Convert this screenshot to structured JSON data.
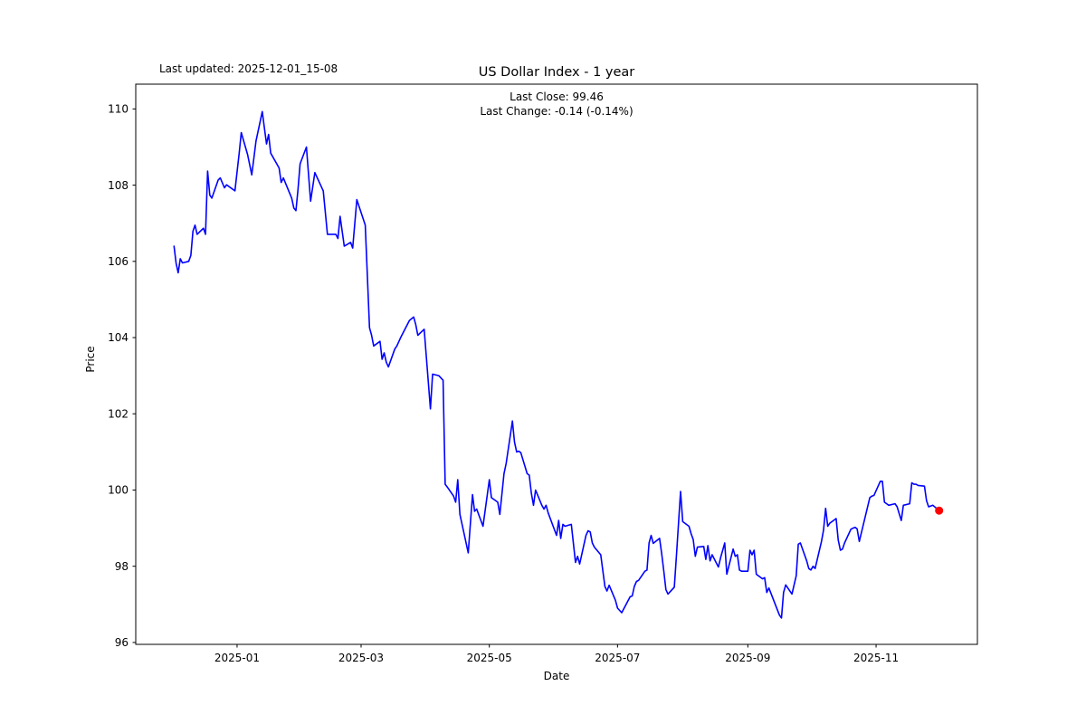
{
  "annotations": {
    "last_updated": "Last updated: 2025-12-01_15-08"
  },
  "chart_data": {
    "type": "line",
    "title": "US Dollar Index - 1 year",
    "subtitle_line1": "Last Close: 99.46",
    "subtitle_line2": "Last Change: -0.14 (-0.14%)",
    "xlabel": "Date",
    "ylabel": "Price",
    "x_tick_labels": [
      "2025-01",
      "2025-03",
      "2025-05",
      "2025-07",
      "2025-09",
      "2025-11"
    ],
    "y_ticks": [
      96,
      98,
      100,
      102,
      104,
      106,
      108,
      110
    ],
    "ylim": [
      95.95,
      110.65
    ],
    "x_range": [
      "2024-12-02",
      "2025-12-01"
    ],
    "grid": false,
    "legend": "none",
    "line_color": "#0000ff",
    "last_point_color": "#ff0000",
    "last_close": 99.46,
    "last_change_abs": -0.14,
    "last_change_pct": "-0.14%",
    "series": [
      {
        "name": "US Dollar Index",
        "points": [
          [
            "2024-12-02",
            106.4
          ],
          [
            "2024-12-03",
            105.95
          ],
          [
            "2024-12-04",
            105.7
          ],
          [
            "2024-12-05",
            106.07
          ],
          [
            "2024-12-06",
            105.96
          ],
          [
            "2024-12-09",
            106.0
          ],
          [
            "2024-12-10",
            106.16
          ],
          [
            "2024-12-11",
            106.79
          ],
          [
            "2024-12-12",
            106.95
          ],
          [
            "2024-12-13",
            106.71
          ],
          [
            "2024-12-16",
            106.87
          ],
          [
            "2024-12-17",
            106.71
          ],
          [
            "2024-12-18",
            108.37
          ],
          [
            "2024-12-19",
            107.74
          ],
          [
            "2024-12-20",
            107.66
          ],
          [
            "2024-12-23",
            108.13
          ],
          [
            "2024-12-24",
            108.19
          ],
          [
            "2024-12-26",
            107.93
          ],
          [
            "2024-12-27",
            108.01
          ],
          [
            "2024-12-30",
            107.89
          ],
          [
            "2024-12-31",
            107.85
          ],
          [
            "2025-01-02",
            108.84
          ],
          [
            "2025-01-03",
            109.38
          ],
          [
            "2025-01-06",
            108.8
          ],
          [
            "2025-01-08",
            108.27
          ],
          [
            "2025-01-10",
            109.16
          ],
          [
            "2025-01-13",
            109.93
          ],
          [
            "2025-01-14",
            109.51
          ],
          [
            "2025-01-15",
            109.08
          ],
          [
            "2025-01-16",
            109.33
          ],
          [
            "2025-01-17",
            108.84
          ],
          [
            "2025-01-21",
            108.45
          ],
          [
            "2025-01-22",
            108.07
          ],
          [
            "2025-01-23",
            108.19
          ],
          [
            "2025-01-27",
            107.66
          ],
          [
            "2025-01-28",
            107.4
          ],
          [
            "2025-01-29",
            107.33
          ],
          [
            "2025-01-30",
            107.89
          ],
          [
            "2025-01-31",
            108.56
          ],
          [
            "2025-02-03",
            109.0
          ],
          [
            "2025-02-05",
            107.58
          ],
          [
            "2025-02-07",
            108.33
          ],
          [
            "2025-02-11",
            107.85
          ],
          [
            "2025-02-13",
            106.71
          ],
          [
            "2025-02-17",
            106.71
          ],
          [
            "2025-02-18",
            106.6
          ],
          [
            "2025-02-19",
            107.18
          ],
          [
            "2025-02-21",
            106.4
          ],
          [
            "2025-02-24",
            106.5
          ],
          [
            "2025-02-25",
            106.35
          ],
          [
            "2025-02-27",
            107.62
          ],
          [
            "2025-03-03",
            106.95
          ],
          [
            "2025-03-05",
            104.26
          ],
          [
            "2025-03-06",
            104.06
          ],
          [
            "2025-03-07",
            103.78
          ],
          [
            "2025-03-10",
            103.9
          ],
          [
            "2025-03-11",
            103.43
          ],
          [
            "2025-03-12",
            103.6
          ],
          [
            "2025-03-13",
            103.35
          ],
          [
            "2025-03-14",
            103.23
          ],
          [
            "2025-03-17",
            103.7
          ],
          [
            "2025-03-18",
            103.78
          ],
          [
            "2025-03-20",
            104.02
          ],
          [
            "2025-03-24",
            104.45
          ],
          [
            "2025-03-26",
            104.54
          ],
          [
            "2025-03-27",
            104.34
          ],
          [
            "2025-03-28",
            104.06
          ],
          [
            "2025-03-31",
            104.22
          ],
          [
            "2025-04-03",
            102.13
          ],
          [
            "2025-04-04",
            103.04
          ],
          [
            "2025-04-07",
            103.0
          ],
          [
            "2025-04-09",
            102.88
          ],
          [
            "2025-04-10",
            100.15
          ],
          [
            "2025-04-11",
            100.08
          ],
          [
            "2025-04-14",
            99.84
          ],
          [
            "2025-04-15",
            99.68
          ],
          [
            "2025-04-16",
            100.27
          ],
          [
            "2025-04-17",
            99.36
          ],
          [
            "2025-04-21",
            98.35
          ],
          [
            "2025-04-23",
            99.88
          ],
          [
            "2025-04-24",
            99.44
          ],
          [
            "2025-04-25",
            99.5
          ],
          [
            "2025-04-28",
            99.05
          ],
          [
            "2025-05-01",
            100.27
          ],
          [
            "2025-05-02",
            99.8
          ],
          [
            "2025-05-05",
            99.68
          ],
          [
            "2025-05-06",
            99.36
          ],
          [
            "2025-05-08",
            100.43
          ],
          [
            "2025-05-09",
            100.7
          ],
          [
            "2025-05-12",
            101.81
          ],
          [
            "2025-05-13",
            101.26
          ],
          [
            "2025-05-14",
            101.0
          ],
          [
            "2025-05-15",
            101.02
          ],
          [
            "2025-05-16",
            100.98
          ],
          [
            "2025-05-19",
            100.43
          ],
          [
            "2025-05-20",
            100.39
          ],
          [
            "2025-05-21",
            99.92
          ],
          [
            "2025-05-22",
            99.6
          ],
          [
            "2025-05-23",
            100.0
          ],
          [
            "2025-05-26",
            99.6
          ],
          [
            "2025-05-27",
            99.5
          ],
          [
            "2025-05-28",
            99.6
          ],
          [
            "2025-05-29",
            99.4
          ],
          [
            "2025-06-02",
            98.81
          ],
          [
            "2025-06-03",
            99.2
          ],
          [
            "2025-06-04",
            98.73
          ],
          [
            "2025-06-05",
            99.1
          ],
          [
            "2025-06-06",
            99.05
          ],
          [
            "2025-06-09",
            99.1
          ],
          [
            "2025-06-11",
            98.1
          ],
          [
            "2025-06-12",
            98.26
          ],
          [
            "2025-06-13",
            98.06
          ],
          [
            "2025-06-16",
            98.81
          ],
          [
            "2025-06-17",
            98.93
          ],
          [
            "2025-06-18",
            98.9
          ],
          [
            "2025-06-19",
            98.61
          ],
          [
            "2025-06-20",
            98.5
          ],
          [
            "2025-06-23",
            98.3
          ],
          [
            "2025-06-25",
            97.47
          ],
          [
            "2025-06-26",
            97.35
          ],
          [
            "2025-06-27",
            97.5
          ],
          [
            "2025-06-30",
            97.11
          ],
          [
            "2025-07-01",
            96.9
          ],
          [
            "2025-07-02",
            96.84
          ],
          [
            "2025-07-03",
            96.78
          ],
          [
            "2025-07-07",
            97.2
          ],
          [
            "2025-07-08",
            97.22
          ],
          [
            "2025-07-09",
            97.47
          ],
          [
            "2025-07-10",
            97.6
          ],
          [
            "2025-07-11",
            97.63
          ],
          [
            "2025-07-14",
            97.87
          ],
          [
            "2025-07-15",
            97.9
          ],
          [
            "2025-07-16",
            98.61
          ],
          [
            "2025-07-17",
            98.81
          ],
          [
            "2025-07-18",
            98.6
          ],
          [
            "2025-07-21",
            98.73
          ],
          [
            "2025-07-22",
            98.34
          ],
          [
            "2025-07-23",
            97.87
          ],
          [
            "2025-07-24",
            97.39
          ],
          [
            "2025-07-25",
            97.27
          ],
          [
            "2025-07-28",
            97.45
          ],
          [
            "2025-07-29",
            98.26
          ],
          [
            "2025-07-31",
            99.96
          ],
          [
            "2025-08-01",
            99.17
          ],
          [
            "2025-08-04",
            99.05
          ],
          [
            "2025-08-05",
            98.85
          ],
          [
            "2025-08-06",
            98.7
          ],
          [
            "2025-08-07",
            98.26
          ],
          [
            "2025-08-08",
            98.5
          ],
          [
            "2025-08-11",
            98.52
          ],
          [
            "2025-08-12",
            98.18
          ],
          [
            "2025-08-13",
            98.54
          ],
          [
            "2025-08-14",
            98.14
          ],
          [
            "2025-08-15",
            98.3
          ],
          [
            "2025-08-18",
            97.98
          ],
          [
            "2025-08-19",
            98.22
          ],
          [
            "2025-08-21",
            98.61
          ],
          [
            "2025-08-22",
            97.79
          ],
          [
            "2025-08-25",
            98.45
          ],
          [
            "2025-08-26",
            98.26
          ],
          [
            "2025-08-27",
            98.3
          ],
          [
            "2025-08-28",
            97.9
          ],
          [
            "2025-08-29",
            97.87
          ],
          [
            "2025-09-01",
            97.87
          ],
          [
            "2025-09-02",
            98.42
          ],
          [
            "2025-09-03",
            98.3
          ],
          [
            "2025-09-04",
            98.42
          ],
          [
            "2025-09-05",
            97.79
          ],
          [
            "2025-09-08",
            97.67
          ],
          [
            "2025-09-09",
            97.7
          ],
          [
            "2025-09-10",
            97.31
          ],
          [
            "2025-09-11",
            97.43
          ],
          [
            "2025-09-16",
            96.72
          ],
          [
            "2025-09-17",
            96.64
          ],
          [
            "2025-09-18",
            97.31
          ],
          [
            "2025-09-19",
            97.51
          ],
          [
            "2025-09-22",
            97.27
          ],
          [
            "2025-09-24",
            97.75
          ],
          [
            "2025-09-25",
            98.58
          ],
          [
            "2025-09-26",
            98.61
          ],
          [
            "2025-09-29",
            98.14
          ],
          [
            "2025-09-30",
            97.94
          ],
          [
            "2025-10-01",
            97.9
          ],
          [
            "2025-10-02",
            98.0
          ],
          [
            "2025-10-03",
            97.94
          ],
          [
            "2025-10-06",
            98.65
          ],
          [
            "2025-10-07",
            98.95
          ],
          [
            "2025-10-08",
            99.52
          ],
          [
            "2025-10-09",
            99.05
          ],
          [
            "2025-10-10",
            99.13
          ],
          [
            "2025-10-13",
            99.25
          ],
          [
            "2025-10-14",
            98.69
          ],
          [
            "2025-10-15",
            98.42
          ],
          [
            "2025-10-16",
            98.45
          ],
          [
            "2025-10-17",
            98.61
          ],
          [
            "2025-10-20",
            98.97
          ],
          [
            "2025-10-21",
            99.0
          ],
          [
            "2025-10-22",
            99.02
          ],
          [
            "2025-10-23",
            98.98
          ],
          [
            "2025-10-24",
            98.65
          ],
          [
            "2025-10-29",
            99.8
          ],
          [
            "2025-10-30",
            99.84
          ],
          [
            "2025-10-31",
            99.86
          ],
          [
            "2025-11-03",
            100.23
          ],
          [
            "2025-11-04",
            100.23
          ],
          [
            "2025-11-05",
            99.68
          ],
          [
            "2025-11-06",
            99.64
          ],
          [
            "2025-11-07",
            99.6
          ],
          [
            "2025-11-10",
            99.64
          ],
          [
            "2025-11-11",
            99.56
          ],
          [
            "2025-11-13",
            99.2
          ],
          [
            "2025-11-14",
            99.6
          ],
          [
            "2025-11-17",
            99.64
          ],
          [
            "2025-11-18",
            100.19
          ],
          [
            "2025-11-19",
            100.15
          ],
          [
            "2025-11-20",
            100.15
          ],
          [
            "2025-11-21",
            100.12
          ],
          [
            "2025-11-24",
            100.1
          ],
          [
            "2025-11-25",
            99.72
          ],
          [
            "2025-11-26",
            99.56
          ],
          [
            "2025-11-28",
            99.6
          ],
          [
            "2025-12-01",
            99.46
          ]
        ]
      }
    ]
  }
}
